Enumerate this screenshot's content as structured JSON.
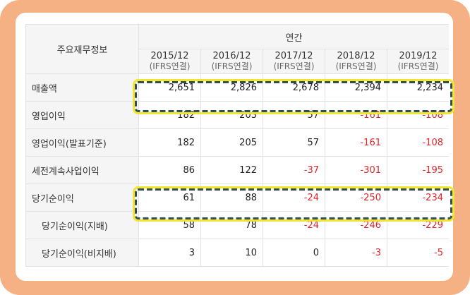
{
  "table": {
    "corner_label": "주요재무정보",
    "group_label": "연간",
    "years": [
      {
        "year": "2015/12",
        "basis": "(IFRS연결)"
      },
      {
        "year": "2016/12",
        "basis": "(IFRS연결)"
      },
      {
        "year": "2017/12",
        "basis": "(IFRS연결)"
      },
      {
        "year": "2018/12",
        "basis": "(IFRS연결)"
      },
      {
        "year": "2019/12",
        "basis": "(IFRS연결)"
      }
    ],
    "rows": [
      {
        "label": "매출액",
        "indent": false,
        "values": [
          "2,651",
          "2,826",
          "2,678",
          "2,394",
          "2,234"
        ],
        "highlighted": true
      },
      {
        "label": "영업이익",
        "indent": false,
        "values": [
          "182",
          "203",
          "57",
          "-161",
          "-108"
        ],
        "highlighted": false
      },
      {
        "label": "영업이익(발표기준)",
        "indent": false,
        "values": [
          "182",
          "205",
          "57",
          "-161",
          "-108"
        ],
        "highlighted": false
      },
      {
        "label": "세전계속사업이익",
        "indent": false,
        "values": [
          "86",
          "122",
          "-37",
          "-301",
          "-195"
        ],
        "highlighted": false
      },
      {
        "label": "당기순이익",
        "indent": false,
        "values": [
          "61",
          "88",
          "-24",
          "-250",
          "-234"
        ],
        "highlighted": true
      },
      {
        "label": "당기순이익(지배)",
        "indent": true,
        "values": [
          "58",
          "78",
          "-24",
          "-246",
          "-229"
        ],
        "highlighted": false
      },
      {
        "label": "당기순이익(비지배)",
        "indent": true,
        "values": [
          "3",
          "10",
          "0",
          "-3",
          "-5"
        ],
        "highlighted": false
      }
    ]
  },
  "colors": {
    "frame": "#f5b183",
    "negative": "#e0242a",
    "highlight_border": "#2f4f5b",
    "highlight_glow": "#f3e62a"
  }
}
